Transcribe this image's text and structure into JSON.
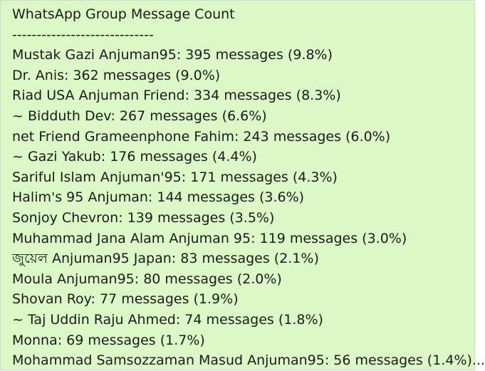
{
  "title": "WhatsApp Group Message Count",
  "separator": "-----------------------------",
  "lines": [
    "Mustak Gazi Anjuman95: 395 messages (9.8%)",
    "Dr. Anis: 362 messages (9.0%)",
    "Riad USA Anjuman Friend: 334 messages (8.3%)",
    "~ Bidduth Dev: 267 messages (6.6%)",
    "net Friend Grameenphone Fahim: 243 messages (6.0%)",
    "~ Gazi Yakub: 176 messages (4.4%)",
    "Sariful Islam Anjuman'95: 171 messages (4.3%)",
    "Halim's 95 Anjuman: 144 messages (3.6%)",
    "Sonjoy Chevron: 139 messages (3.5%)",
    "Muhammad Jana Alam Anjuman 95: 119 messages (3.0%)",
    "জুয়েল Anjuman95 Japan: 83 messages (2.1%)",
    "Moula Anjuman95: 80 messages (2.0%)",
    "Shovan Roy: 77 messages (1.9%)",
    "~ Taj Uddin Raju Ahmed: 74 messages (1.8%)",
    "Monna: 69 messages (1.7%)",
    "Mohammad Samsozzaman Masud Anjuman95: 56 messages (1.4%)..."
  ],
  "colors": {
    "bubble_background": "#dcf8c6",
    "text": "#1b1b1b"
  }
}
